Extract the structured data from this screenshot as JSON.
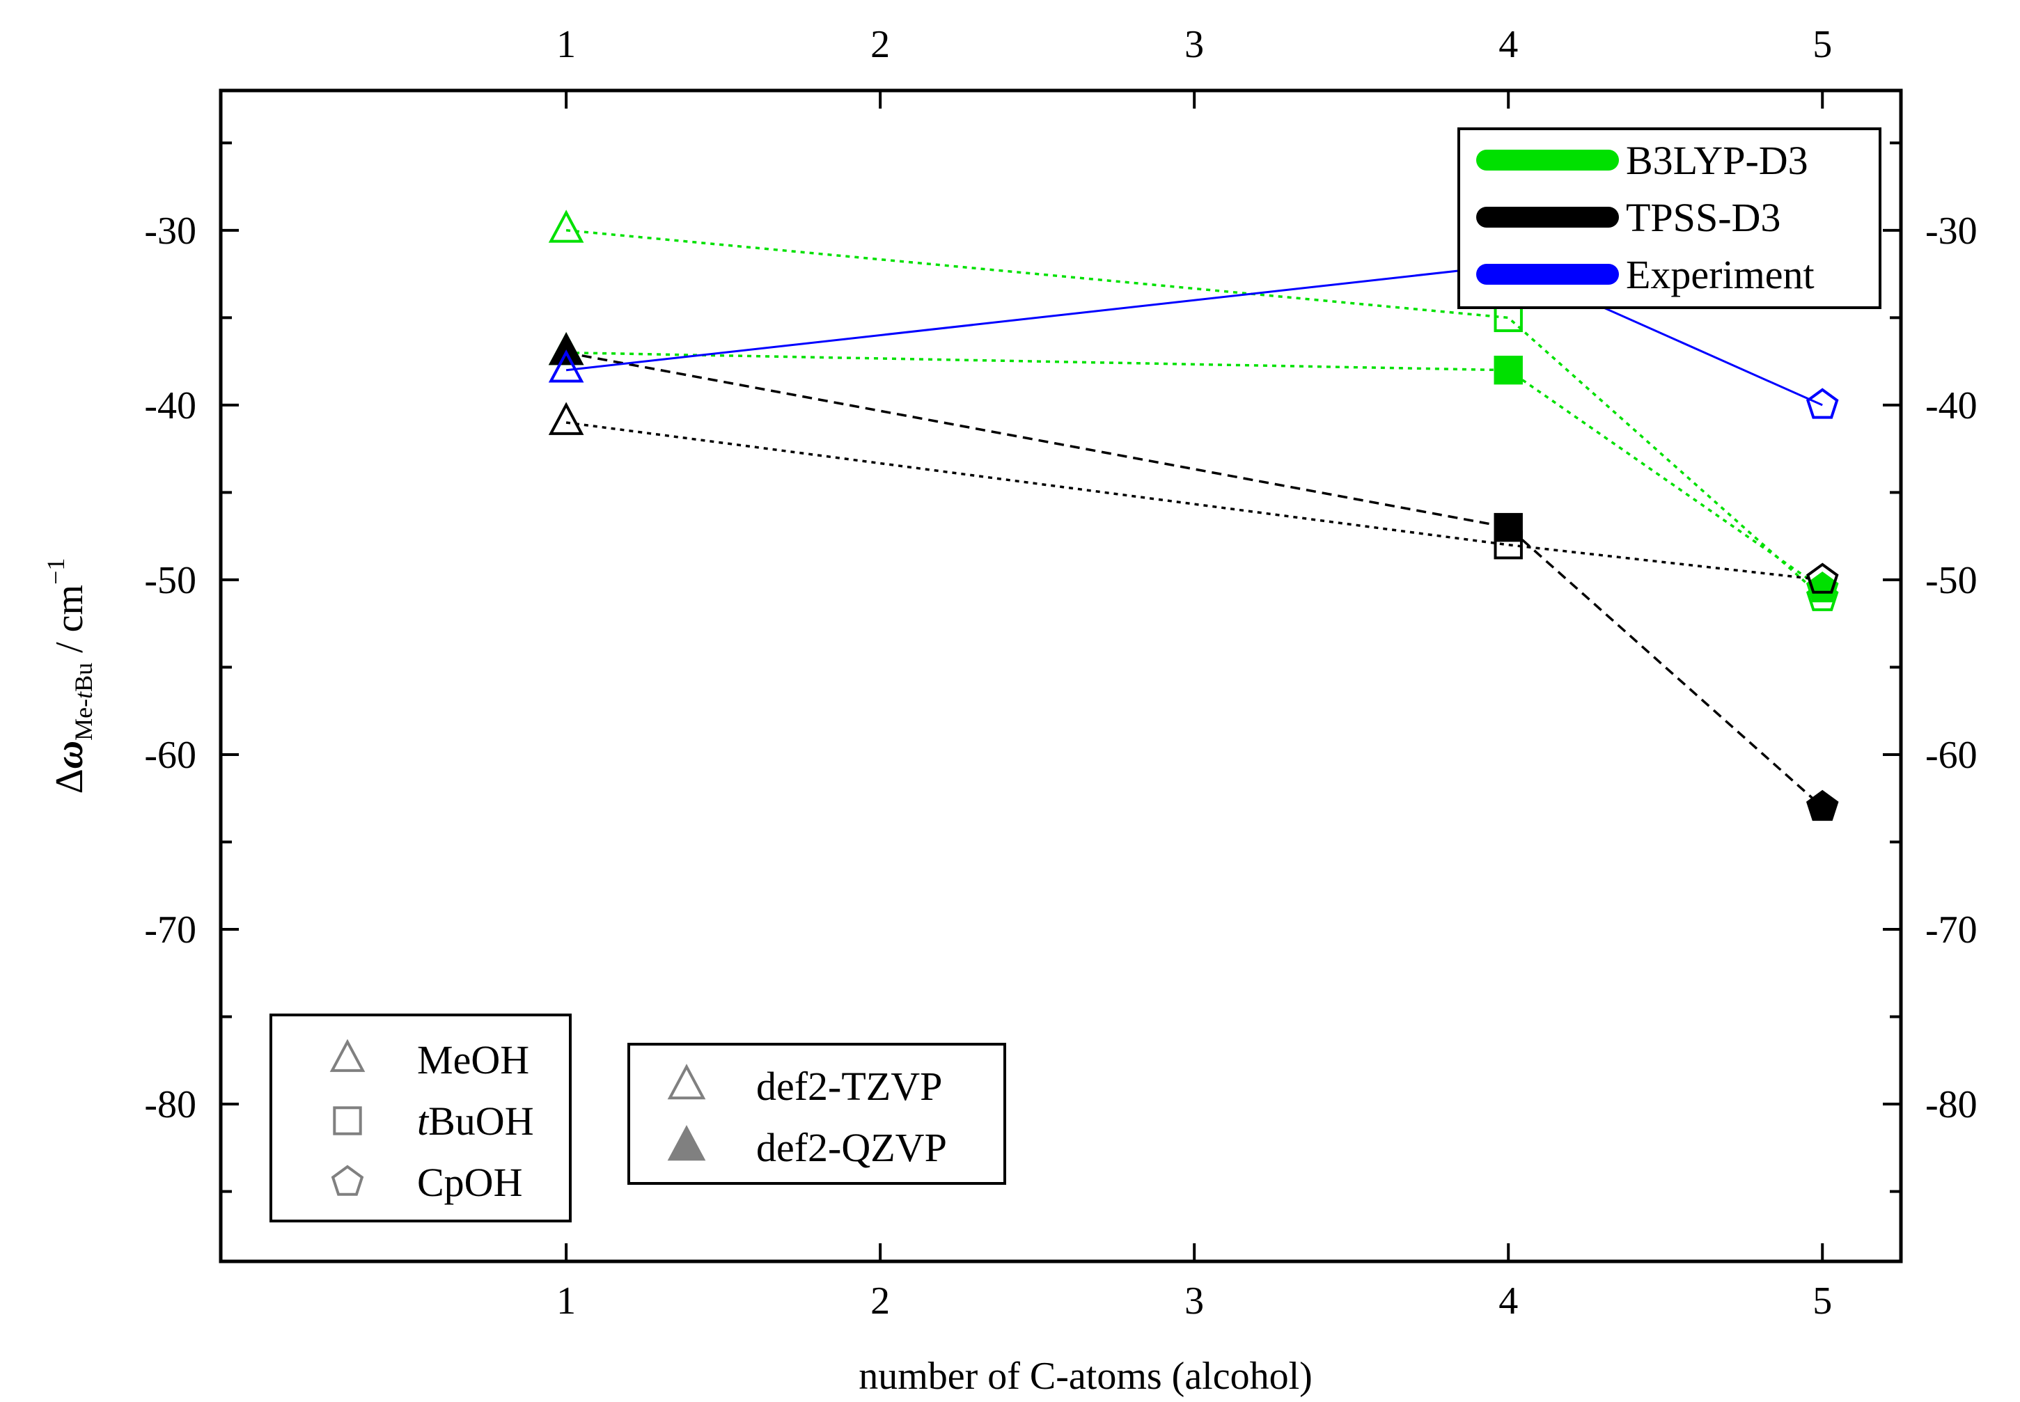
{
  "chart_data": {
    "type": "line",
    "xlabel": "number of C-atoms (alcohol)",
    "ylabel": {
      "delta": "Δ",
      "omega": "ω",
      "subscript_prefix": "Me-",
      "subscript_italic": "t",
      "subscript_suffix": "Bu",
      "unit": " / cm",
      "exponent": "−1"
    },
    "xlim": [
      -0.1,
      5.25
    ],
    "ylim": [
      -89,
      -22
    ],
    "xticks": [
      1,
      2,
      3,
      4,
      5
    ],
    "xtick_labels": [
      "1",
      "2",
      "3",
      "4",
      "5"
    ],
    "yticks": [
      -30,
      -40,
      -50,
      -60,
      -70,
      -80
    ],
    "ytick_labels": [
      "-30",
      "-40",
      "-50",
      "-60",
      "-70",
      "-80"
    ],
    "y_minor_ticks": [
      -25,
      -35,
      -45,
      -55,
      -65,
      -75,
      -85
    ],
    "series": [
      {
        "name": "B3LYP-D3",
        "basis": "def2-TZVP",
        "color": "#00e000",
        "dash": "dotted",
        "filled": false,
        "points": [
          {
            "x": 1,
            "y": -30,
            "marker": "triangle"
          },
          {
            "x": 4,
            "y": -35,
            "marker": "square"
          },
          {
            "x": 5,
            "y": -51,
            "marker": "pentagon"
          }
        ]
      },
      {
        "name": "B3LYP-D3",
        "basis": "def2-QZVP",
        "color": "#00e000",
        "dash": "dotted",
        "filled": true,
        "points": [
          {
            "x": 1,
            "y": -37,
            "marker": "triangle"
          },
          {
            "x": 4,
            "y": -38,
            "marker": "square"
          },
          {
            "x": 5,
            "y": -50.5,
            "marker": "pentagon"
          }
        ]
      },
      {
        "name": "TPSS-D3",
        "basis": "def2-TZVP",
        "color": "#000000",
        "dash": "dotted",
        "filled": false,
        "points": [
          {
            "x": 1,
            "y": -41,
            "marker": "triangle"
          },
          {
            "x": 4,
            "y": -48,
            "marker": "square"
          },
          {
            "x": 5,
            "y": -50,
            "marker": "pentagon"
          }
        ]
      },
      {
        "name": "TPSS-D3",
        "basis": "def2-QZVP",
        "color": "#000000",
        "dash": "dashed",
        "filled": true,
        "points": [
          {
            "x": 1,
            "y": -37,
            "marker": "triangle"
          },
          {
            "x": 4,
            "y": -47,
            "marker": "square"
          },
          {
            "x": 5,
            "y": -63,
            "marker": "pentagon"
          }
        ]
      },
      {
        "name": "Experiment",
        "basis": "",
        "color": "#0000ff",
        "dash": "solid",
        "filled": false,
        "points": [
          {
            "x": 1,
            "y": -38,
            "marker": "triangle"
          },
          {
            "x": 4,
            "y": -32,
            "marker": "square"
          },
          {
            "x": 5,
            "y": -40,
            "marker": "pentagon"
          }
        ]
      }
    ],
    "legends": {
      "methods": {
        "placement": "top-right",
        "entries": [
          {
            "label": "B3LYP-D3",
            "color": "#00e000"
          },
          {
            "label": "TPSS-D3",
            "color": "#000000"
          },
          {
            "label": "Experiment",
            "color": "#0000ff"
          }
        ]
      },
      "molecules": {
        "placement": "bottom-left",
        "entries": [
          {
            "marker": "triangle",
            "label": "MeOH"
          },
          {
            "marker": "square",
            "label_italic": "t",
            "label": "BuOH"
          },
          {
            "marker": "pentagon",
            "label": "CpOH"
          }
        ]
      },
      "basis_sets": {
        "placement": "bottom-center-left",
        "entries": [
          {
            "marker": "triangle",
            "filled": false,
            "label": "def2-TZVP"
          },
          {
            "marker": "triangle",
            "filled": true,
            "label": "def2-QZVP"
          }
        ]
      }
    },
    "marker_gray": "#808080"
  }
}
